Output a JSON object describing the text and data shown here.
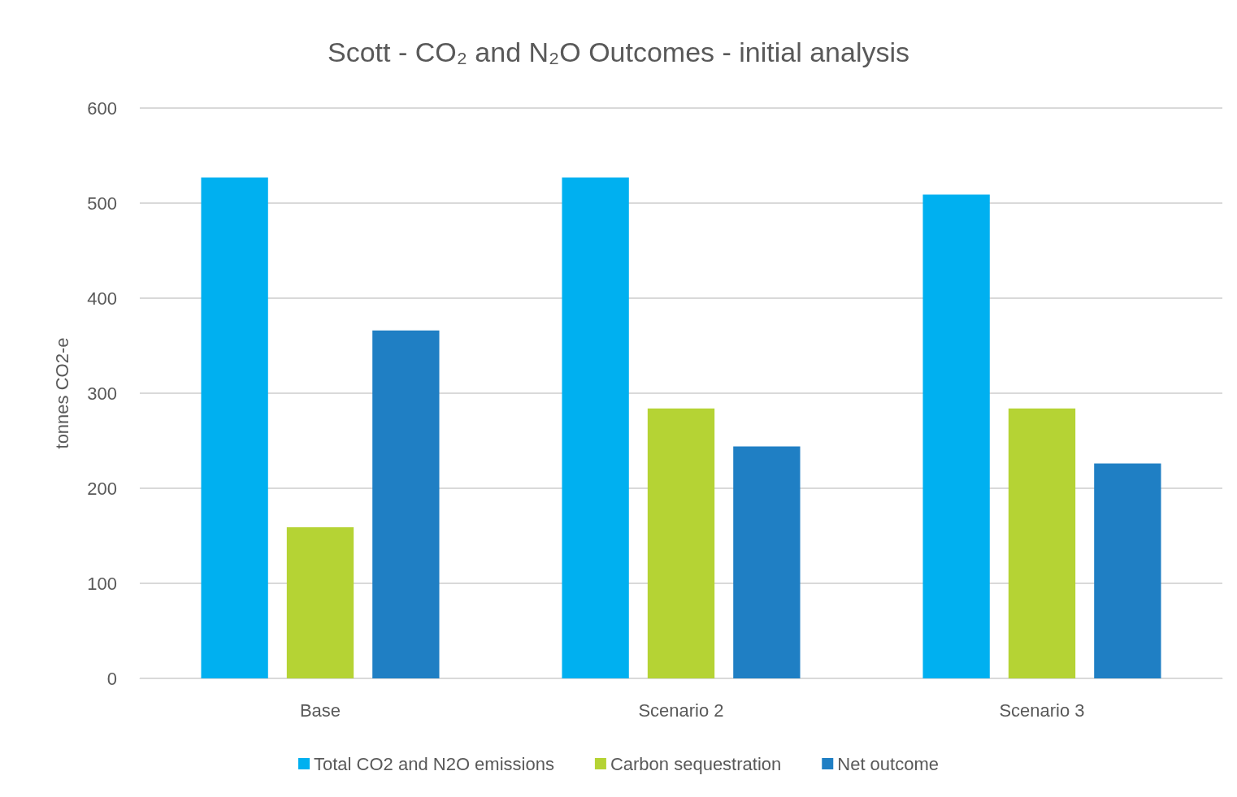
{
  "chart_data": {
    "type": "bar",
    "title": "Scott - CO₂ and N₂O Outcomes - initial analysis",
    "ylabel": "tonnes CO2-e",
    "categories": [
      "Base",
      "Scenario 2",
      "Scenario 3"
    ],
    "series": [
      {
        "name": "Total CO2 and N2O emissions",
        "color": "#00b0f0",
        "values": [
          527,
          527,
          509
        ]
      },
      {
        "name": "Carbon sequestration",
        "color": "#b5d334",
        "values": [
          159,
          284,
          284
        ]
      },
      {
        "name": "Net outcome",
        "color": "#1f7fc4",
        "values": [
          366,
          244,
          226
        ]
      }
    ],
    "ylim": [
      0,
      600
    ],
    "yticks": [
      0,
      100,
      200,
      300,
      400,
      500,
      600
    ],
    "grid": "y",
    "legend": "bottom"
  }
}
